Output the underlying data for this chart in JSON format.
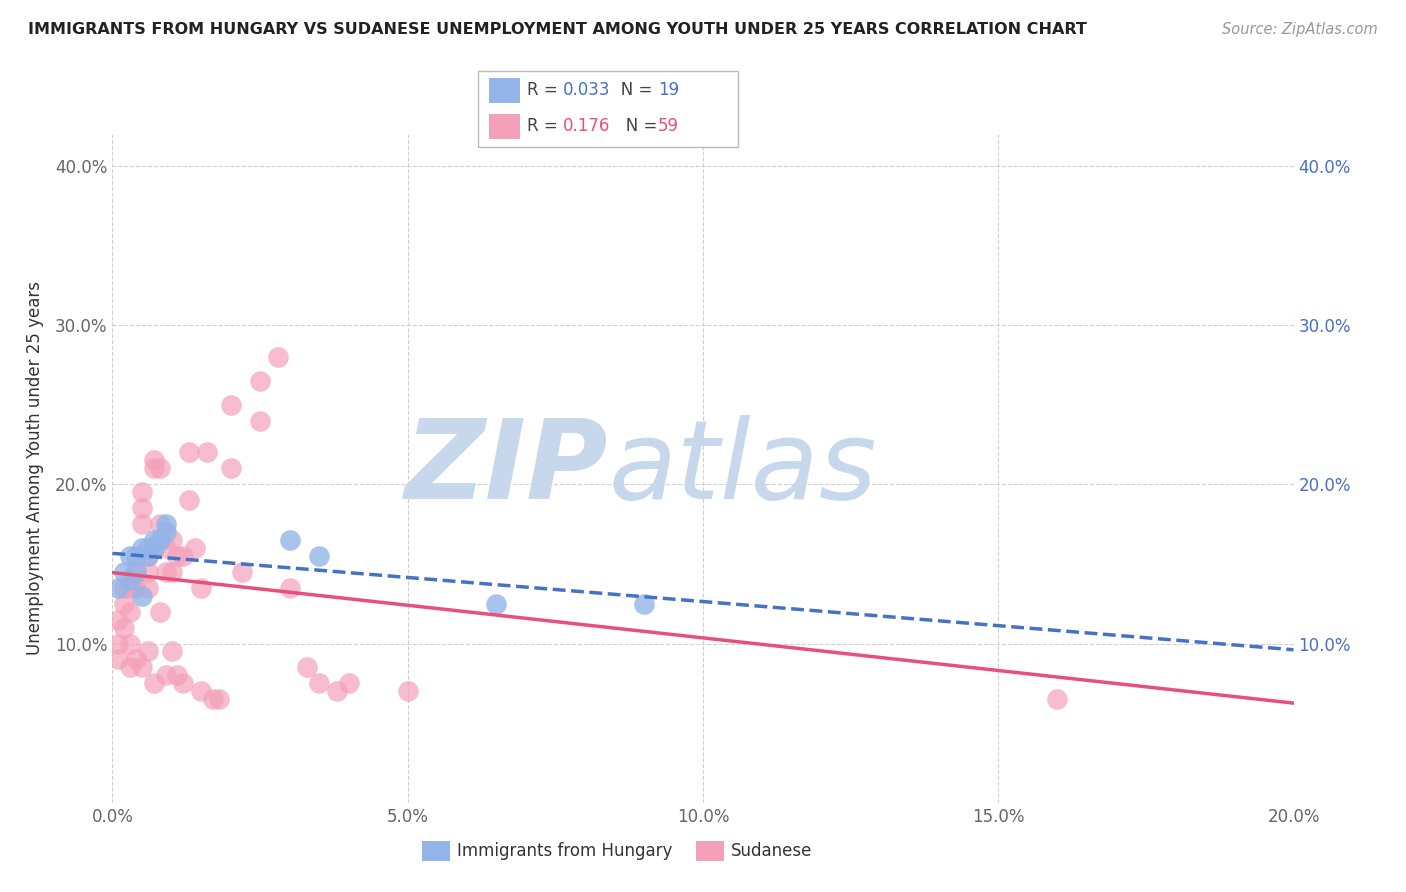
{
  "title": "IMMIGRANTS FROM HUNGARY VS SUDANESE UNEMPLOYMENT AMONG YOUTH UNDER 25 YEARS CORRELATION CHART",
  "source": "Source: ZipAtlas.com",
  "ylabel": "Unemployment Among Youth under 25 years",
  "legend_hungary": "Immigrants from Hungary",
  "legend_sudanese": "Sudanese",
  "xmin": 0.0,
  "xmax": 0.2,
  "ymin": 0.0,
  "ymax": 0.42,
  "yticks": [
    0.0,
    0.1,
    0.2,
    0.3,
    0.4
  ],
  "xticks": [
    0.0,
    0.05,
    0.1,
    0.15,
    0.2
  ],
  "xtick_labels": [
    "0.0%",
    "5.0%",
    "10.0%",
    "15.0%",
    "20.0%"
  ],
  "ytick_labels": [
    "",
    "10.0%",
    "20.0%",
    "30.0%",
    "40.0%"
  ],
  "color_hungary": "#92b4e8",
  "color_sudanese": "#f4a0b8",
  "trendline_hungary_color": "#4472c4",
  "trendline_sudanese_color": "#e8507a",
  "r_hungary": "0.033",
  "n_hungary": "19",
  "r_sudanese": "0.176",
  "n_sudanese": "59",
  "hungary_x": [
    0.001,
    0.002,
    0.003,
    0.003,
    0.004,
    0.004,
    0.005,
    0.005,
    0.006,
    0.006,
    0.007,
    0.007,
    0.008,
    0.009,
    0.009,
    0.03,
    0.035,
    0.065,
    0.09
  ],
  "hungary_y": [
    0.135,
    0.145,
    0.14,
    0.155,
    0.145,
    0.155,
    0.16,
    0.13,
    0.155,
    0.16,
    0.165,
    0.16,
    0.165,
    0.175,
    0.17,
    0.165,
    0.155,
    0.125,
    0.125
  ],
  "sudanese_x": [
    0.001,
    0.001,
    0.001,
    0.002,
    0.002,
    0.002,
    0.003,
    0.003,
    0.003,
    0.003,
    0.004,
    0.004,
    0.004,
    0.005,
    0.005,
    0.005,
    0.005,
    0.006,
    0.006,
    0.006,
    0.006,
    0.007,
    0.007,
    0.007,
    0.007,
    0.008,
    0.008,
    0.008,
    0.009,
    0.009,
    0.009,
    0.01,
    0.01,
    0.01,
    0.011,
    0.011,
    0.012,
    0.012,
    0.013,
    0.013,
    0.014,
    0.015,
    0.015,
    0.016,
    0.017,
    0.018,
    0.02,
    0.02,
    0.022,
    0.025,
    0.025,
    0.028,
    0.03,
    0.033,
    0.035,
    0.038,
    0.04,
    0.05,
    0.16
  ],
  "sudanese_y": [
    0.115,
    0.1,
    0.09,
    0.135,
    0.125,
    0.11,
    0.135,
    0.12,
    0.1,
    0.085,
    0.145,
    0.135,
    0.09,
    0.195,
    0.185,
    0.175,
    0.085,
    0.155,
    0.145,
    0.135,
    0.095,
    0.215,
    0.21,
    0.16,
    0.075,
    0.21,
    0.175,
    0.12,
    0.16,
    0.145,
    0.08,
    0.165,
    0.145,
    0.095,
    0.155,
    0.08,
    0.155,
    0.075,
    0.22,
    0.19,
    0.16,
    0.135,
    0.07,
    0.22,
    0.065,
    0.065,
    0.25,
    0.21,
    0.145,
    0.265,
    0.24,
    0.28,
    0.135,
    0.085,
    0.075,
    0.07,
    0.075,
    0.07,
    0.065
  ],
  "watermark_zip": "ZIP",
  "watermark_atlas": "atlas",
  "watermark_color_zip": "#c8d8ec",
  "watermark_color_atlas": "#c8d8ec",
  "background_color": "#ffffff"
}
